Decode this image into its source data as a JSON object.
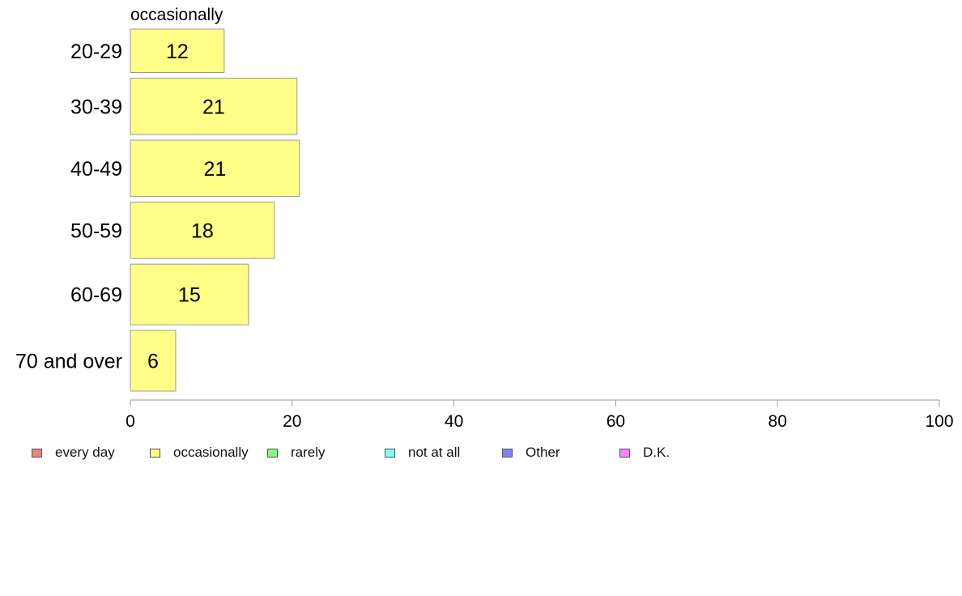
{
  "chart_data": {
    "type": "bar",
    "orientation": "horizontal",
    "series_label": "occasionally",
    "categories": [
      "20-29",
      "30-39",
      "40-49",
      "50-59",
      "60-69",
      "70 and over"
    ],
    "values": [
      11.6,
      20.6,
      20.9,
      17.8,
      14.6,
      5.6
    ],
    "data_labels": [
      "12",
      "21",
      "21",
      "18",
      "15",
      "6"
    ],
    "category_weights": [
      1.0,
      1.3,
      1.3,
      1.3,
      1.4,
      1.4
    ],
    "x_ticks": [
      "0",
      "20",
      "40",
      "60",
      "80",
      "100"
    ],
    "xlim": [
      0,
      100
    ],
    "grid": false,
    "bar_color": "#ffff88",
    "bar_edge_color": "#999999",
    "legend_position": "bottom",
    "legend": [
      {
        "label": "every day",
        "color": "#f08080"
      },
      {
        "label": "occasionally",
        "color": "#ffff80"
      },
      {
        "label": "rarely",
        "color": "#80ff80"
      },
      {
        "label": "not at all",
        "color": "#80ffff"
      },
      {
        "label": "Other",
        "color": "#8080f0"
      },
      {
        "label": "D.K.",
        "color": "#ff80ff"
      }
    ]
  }
}
